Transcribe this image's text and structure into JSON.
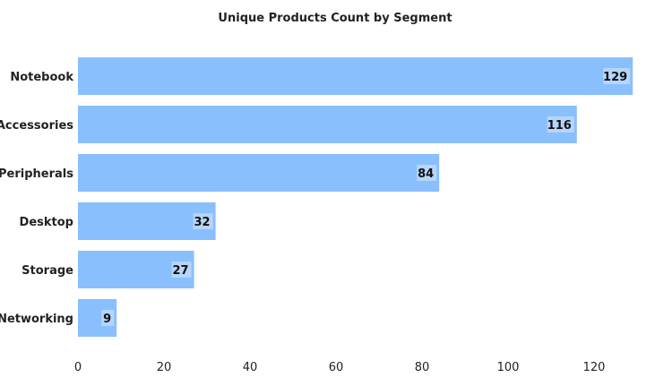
{
  "chart_data": {
    "type": "bar",
    "orientation": "horizontal",
    "title": "Unique Products Count by Segment",
    "xlabel": "",
    "ylabel": "",
    "categories": [
      "Notebook",
      "Accessories",
      "Peripherals",
      "Desktop",
      "Storage",
      "Networking"
    ],
    "values": [
      129,
      116,
      84,
      32,
      27,
      9
    ],
    "xlim": [
      0,
      130
    ],
    "xticks": [
      0,
      20,
      40,
      60,
      80,
      100,
      120
    ],
    "grid": false,
    "legend": "none",
    "bar_color": "#8abffd"
  }
}
